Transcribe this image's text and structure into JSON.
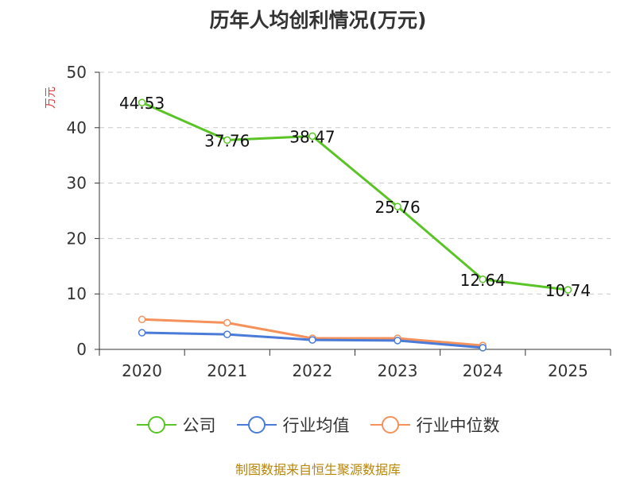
{
  "chart_data": {
    "type": "line",
    "title": "历年人均创利情况(万元)",
    "ylabel": "万元",
    "categories": [
      "2020",
      "2021",
      "2022",
      "2023",
      "2024",
      "2025"
    ],
    "yticks": [
      "0",
      "10",
      "20",
      "30",
      "40",
      "50"
    ],
    "ylim": [
      0,
      50
    ],
    "grid": true,
    "legend_position": "bottom",
    "series": [
      {
        "name": "公司",
        "color": "#5ac426",
        "values": [
          44.53,
          37.76,
          38.47,
          25.76,
          12.64,
          10.74
        ],
        "labels": [
          "44.53",
          "37.76",
          "38.47",
          "25.76",
          "12.64",
          "10.74"
        ]
      },
      {
        "name": "行业均值",
        "color": "#4a7bd8",
        "values": [
          3.0,
          2.7,
          1.7,
          1.6,
          0.3,
          null
        ]
      },
      {
        "name": "行业中位数",
        "color": "#f5915a",
        "values": [
          5.4,
          4.8,
          2.0,
          2.0,
          0.7,
          null
        ]
      }
    ]
  },
  "source_note": "制图数据来自恒生聚源数据库"
}
